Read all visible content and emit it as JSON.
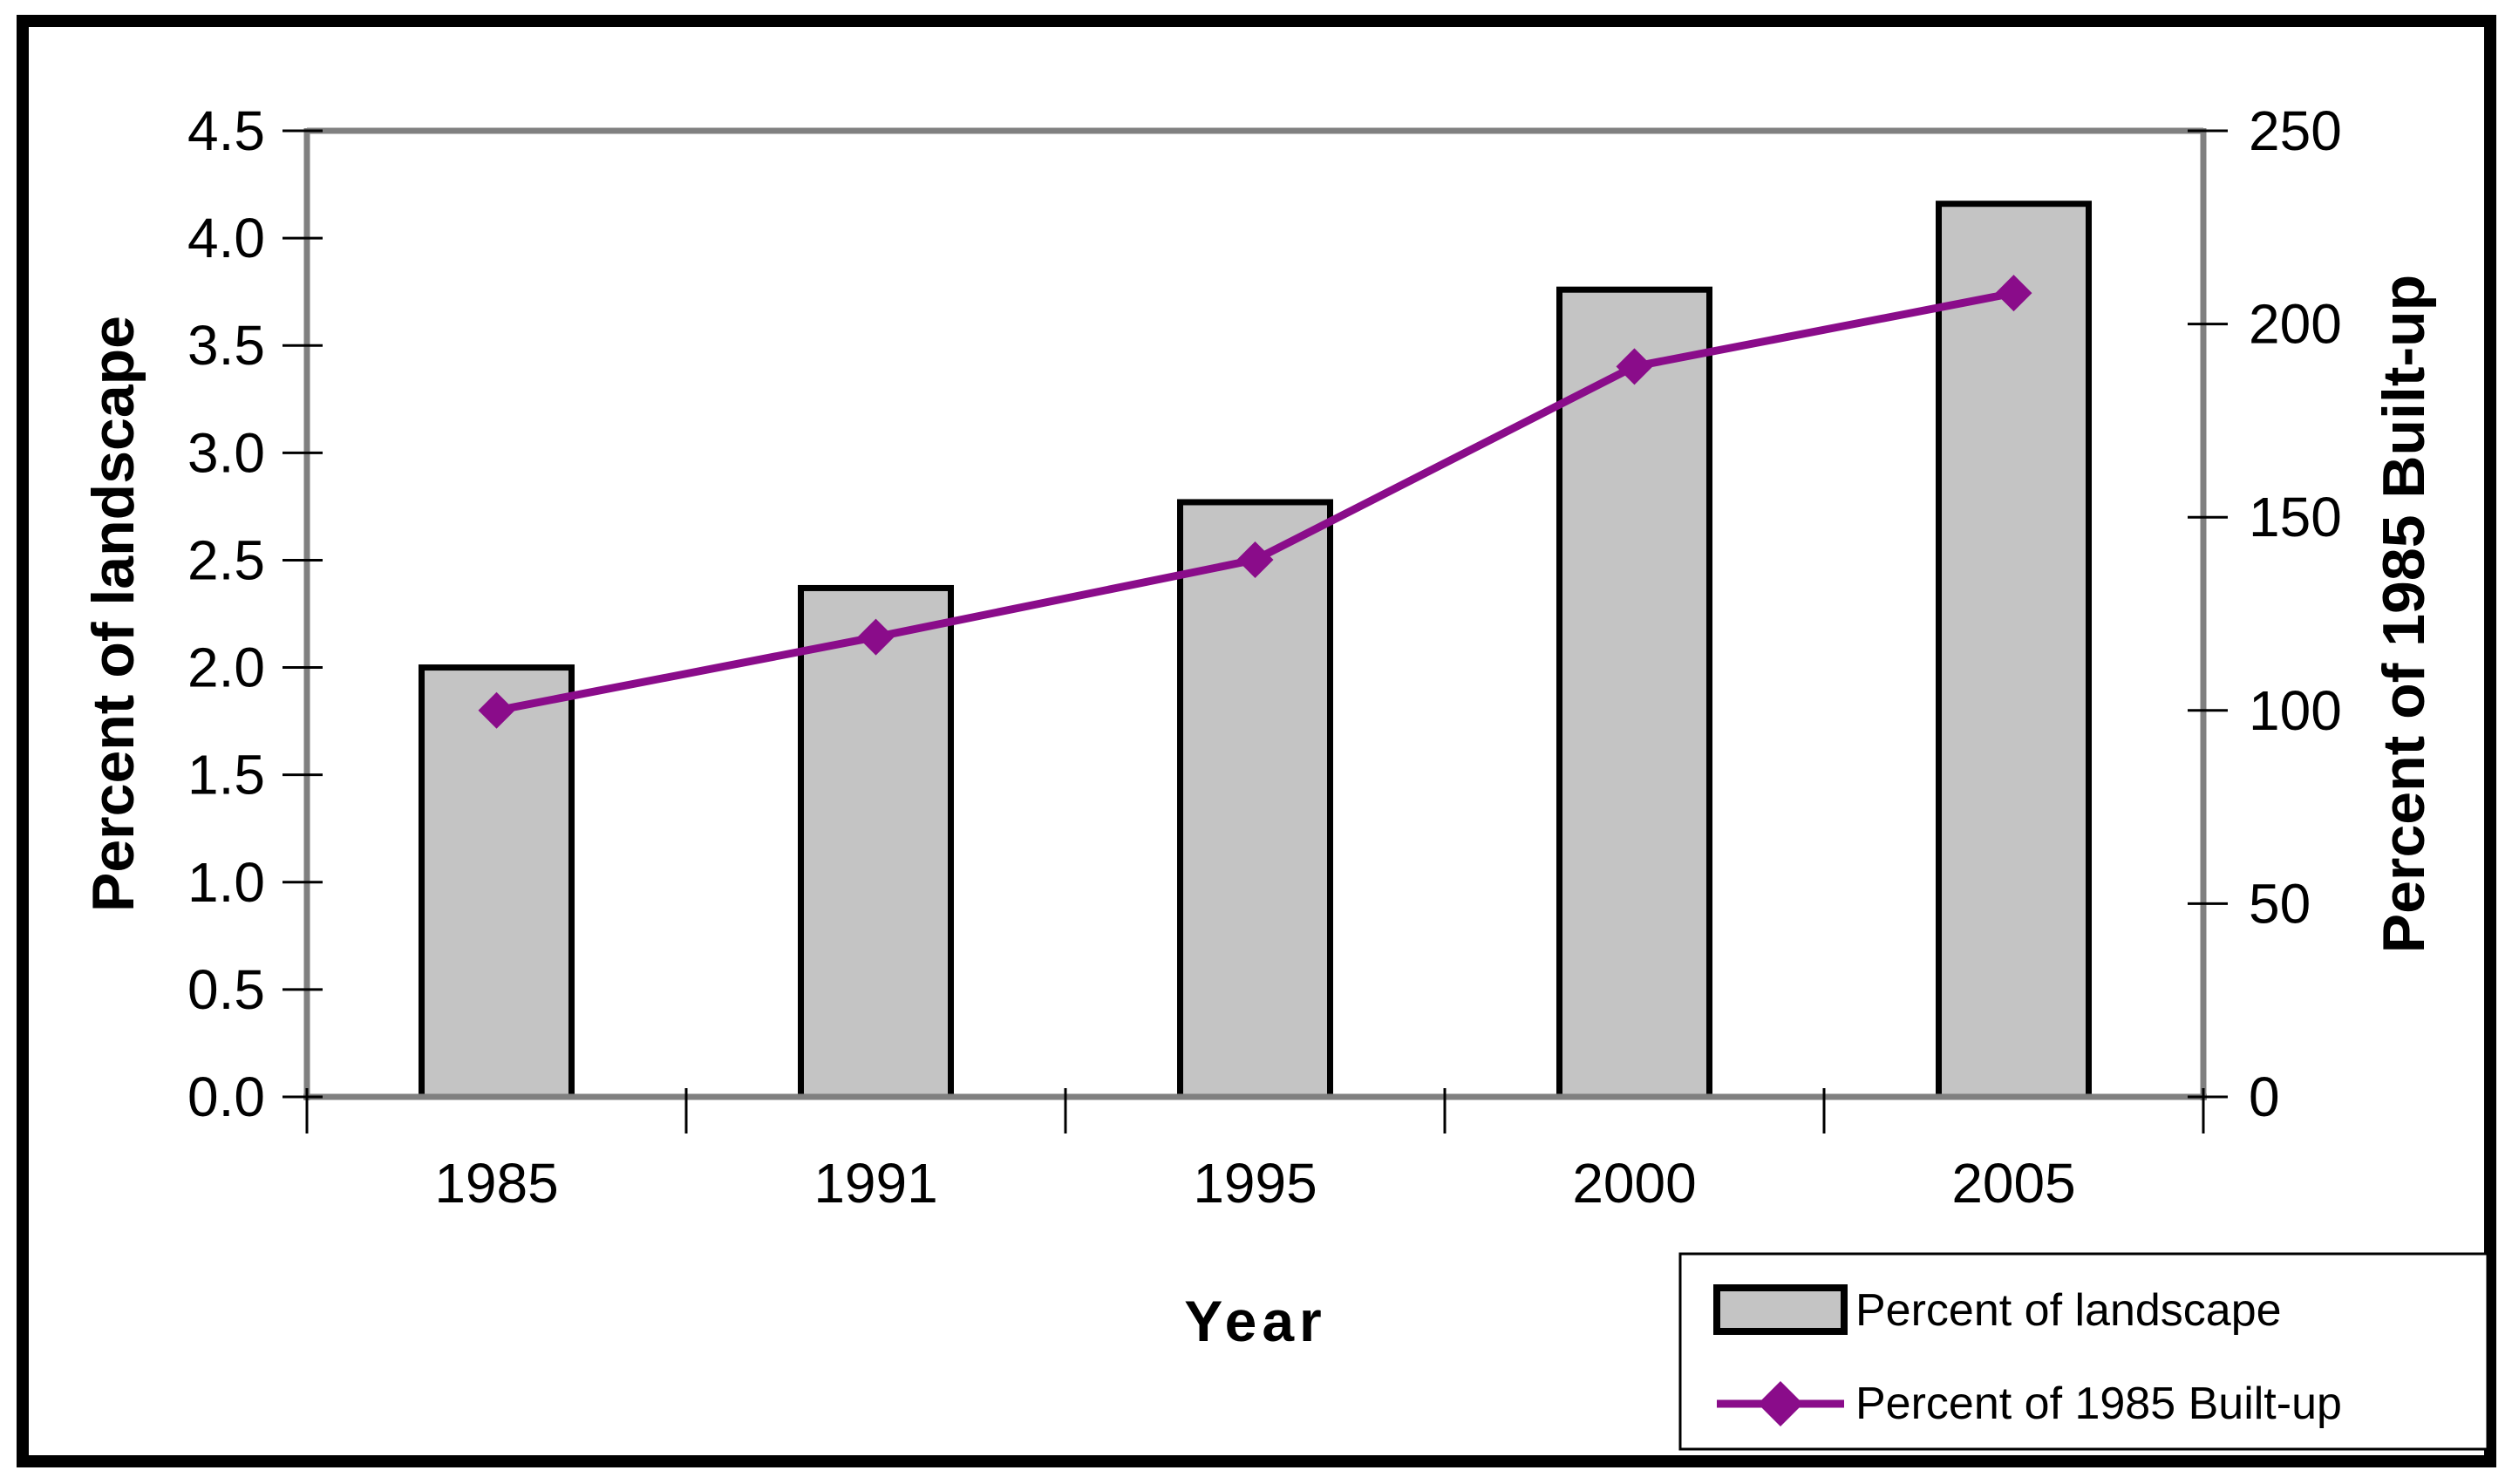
{
  "chart_data": {
    "type": "bar+line combo",
    "categories": [
      "1985",
      "1991",
      "1995",
      "2000",
      "2005"
    ],
    "series": [
      {
        "name": "Percent of landscape",
        "type": "bar",
        "axis": "left",
        "values": [
          2.0,
          2.37,
          2.77,
          3.76,
          4.16
        ]
      },
      {
        "name": "Percent of 1985 Built-up",
        "type": "line",
        "axis": "right",
        "marker": "diamond",
        "values": [
          100,
          119,
          139,
          189,
          208
        ]
      }
    ],
    "xlabel": "Year",
    "left_axis": {
      "title": "Percent of landscape",
      "min": 0,
      "max": 4.5,
      "step": 0.5,
      "tick_labels": [
        "0.0",
        "0.5",
        "1.0",
        "1.5",
        "2.0",
        "2.5",
        "3.0",
        "3.5",
        "4.0",
        "4.5"
      ]
    },
    "right_axis": {
      "title": "Percent of 1985 Built-up",
      "min": 0,
      "max": 250,
      "step": 50,
      "tick_labels": [
        "0",
        "50",
        "100",
        "150",
        "200",
        "250"
      ]
    },
    "grid": false,
    "legend": {
      "position": "bottom-right",
      "items": [
        {
          "label": "Percent of landscape",
          "swatch": "bar"
        },
        {
          "label": "Percent of 1985 Built-up",
          "swatch": "line-diamond"
        }
      ]
    }
  },
  "colors": {
    "bar_fill": "#c4c4c4",
    "line": "#8a0c8a",
    "axis": "#808080",
    "text": "#000000",
    "figure_border": "#000000",
    "background": "#ffffff"
  }
}
